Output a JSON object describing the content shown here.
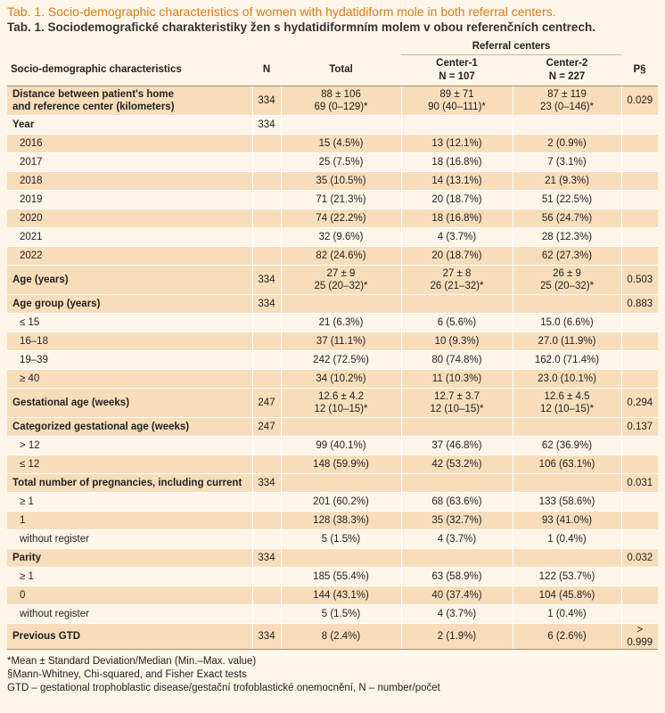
{
  "title_en": "Tab. 1. Socio-demographic characteristics of women with hydatidiform mole in both referral centers.",
  "title_cz": "Tab. 1. Sociodemografické charakteristiky žen s hydatidiformním molem v obou referenčních centrech.",
  "header": {
    "group": "Referral centers",
    "characteristics": "Socio-demographic characteristics",
    "n": "N",
    "total": "Total",
    "center1_name": "Center-1",
    "center1_n": "N = 107",
    "center2_name": "Center-2",
    "center2_n": "N = 227",
    "p": "P§"
  },
  "rows": [
    {
      "label": "Distance between patient's home",
      "label2": "and reference center (kilometers)",
      "type": "sec",
      "n": "334",
      "total": "88 ± 106",
      "total2": "69 (0–129)*",
      "c1": "89 ± 71",
      "c1b": "90 (40–111)*",
      "c2": "87 ± 119",
      "c2b": "23 (0–146)*",
      "p": "0.029"
    },
    {
      "label": "Year",
      "type": "sec",
      "n": "334",
      "total": "",
      "c1": "",
      "c2": "",
      "p": ""
    },
    {
      "label": "2016",
      "type": "sub",
      "n": "",
      "total": "15 (4.5%)",
      "c1": "13 (12.1%)",
      "c2": "2 (0.9%)",
      "p": ""
    },
    {
      "label": "2017",
      "type": "sub",
      "n": "",
      "total": "25 (7.5%)",
      "c1": "18 (16.8%)",
      "c2": "7 (3.1%)",
      "p": ""
    },
    {
      "label": "2018",
      "type": "sub",
      "n": "",
      "total": "35 (10.5%)",
      "c1": "14 (13.1%)",
      "c2": "21 (9.3%)",
      "p": ""
    },
    {
      "label": "2019",
      "type": "sub",
      "n": "",
      "total": "71 (21.3%)",
      "c1": "20 (18.7%)",
      "c2": "51 (22.5%)",
      "p": ""
    },
    {
      "label": "2020",
      "type": "sub",
      "n": "",
      "total": "74 (22.2%)",
      "c1": "18 (16.8%)",
      "c2": "56 (24.7%)",
      "p": ""
    },
    {
      "label": "2021",
      "type": "sub",
      "n": "",
      "total": "32 (9.6%)",
      "c1": "4 (3.7%)",
      "c2": "28 (12.3%)",
      "p": ""
    },
    {
      "label": "2022",
      "type": "sub",
      "n": "",
      "total": "82 (24.6%)",
      "c1": "20 (18.7%)",
      "c2": "62 (27.3%)",
      "p": ""
    },
    {
      "label": "Age (years)",
      "type": "sec",
      "n": "334",
      "total": "27 ± 9",
      "total2": "25 (20–32)*",
      "c1": "27 ± 8",
      "c1b": "26 (21–32)*",
      "c2": "26 ± 9",
      "c2b": "25 (20–32)*",
      "p": "0.503"
    },
    {
      "label": "Age group (years)",
      "type": "sec",
      "n": "334",
      "total": "",
      "c1": "",
      "c2": "",
      "p": "0.883"
    },
    {
      "label": "≤ 15",
      "type": "sub",
      "n": "",
      "total": "21 (6.3%)",
      "c1": "6 (5.6%)",
      "c2": "15.0 (6.6%)",
      "p": ""
    },
    {
      "label": "16–18",
      "type": "sub",
      "n": "",
      "total": "37 (11.1%)",
      "c1": "10 (9.3%)",
      "c2": "27.0 (11.9%)",
      "p": ""
    },
    {
      "label": "19–39",
      "type": "sub",
      "n": "",
      "total": "242 (72.5%)",
      "c1": "80 (74.8%)",
      "c2": "162.0 (71.4%)",
      "p": ""
    },
    {
      "label": "≥ 40",
      "type": "sub",
      "n": "",
      "total": "34 (10.2%)",
      "c1": "11 (10.3%)",
      "c2": "23.0 (10.1%)",
      "p": ""
    },
    {
      "label": "Gestational age (weeks)",
      "type": "sec",
      "n": "247",
      "total": "12.6 ± 4.2",
      "total2": "12 (10–15)*",
      "c1": "12.7 ± 3.7",
      "c1b": "12 (10–15)*",
      "c2": "12.6 ± 4.5",
      "c2b": "12 (10–15)*",
      "p": "0.294"
    },
    {
      "label": "Categorized gestational age (weeks)",
      "type": "sec",
      "n": "247",
      "total": "",
      "c1": "",
      "c2": "",
      "p": "0.137"
    },
    {
      "label": "> 12",
      "type": "sub",
      "n": "",
      "total": "99 (40.1%)",
      "c1": "37 (46.8%)",
      "c2": "62 (36.9%)",
      "p": ""
    },
    {
      "label": "≤ 12",
      "type": "sub",
      "n": "",
      "total": "148 (59.9%)",
      "c1": "42 (53.2%)",
      "c2": "106 (63.1%)",
      "p": ""
    },
    {
      "label": "Total number of pregnancies, including current",
      "type": "sec",
      "n": "334",
      "total": "",
      "c1": "",
      "c2": "",
      "p": "0.031"
    },
    {
      "label": "≥ 1",
      "type": "sub",
      "n": "",
      "total": "201 (60.2%)",
      "c1": "68 (63.6%)",
      "c2": "133 (58.6%)",
      "p": ""
    },
    {
      "label": "1",
      "type": "sub",
      "n": "",
      "total": "128 (38.3%)",
      "c1": "35 (32.7%)",
      "c2": "93 (41.0%)",
      "p": ""
    },
    {
      "label": "without register",
      "type": "sub",
      "n": "",
      "total": "5 (1.5%)",
      "c1": "4 (3.7%)",
      "c2": "1 (0.4%)",
      "p": ""
    },
    {
      "label": "Parity",
      "type": "sec",
      "n": "334",
      "total": "",
      "c1": "",
      "c2": "",
      "p": "0.032"
    },
    {
      "label": "≥ 1",
      "type": "sub",
      "n": "",
      "total": "185 (55.4%)",
      "c1": "63 (58.9%)",
      "c2": "122 (53.7%)",
      "p": ""
    },
    {
      "label": "0",
      "type": "sub",
      "n": "",
      "total": "144 (43.1%)",
      "c1": "40 (37.4%)",
      "c2": "104 (45.8%)",
      "p": ""
    },
    {
      "label": "without register",
      "type": "sub",
      "n": "",
      "total": "5 (1.5%)",
      "c1": "4 (3.7%)",
      "c2": "1 (0.4%)",
      "p": ""
    },
    {
      "label": "Previous GTD",
      "type": "sec",
      "n": "334",
      "total": "8 (2.4%)",
      "c1": "2 (1.9%)",
      "c2": "6 (2.6%)",
      "p": "> 0.999"
    }
  ],
  "notes": [
    "*Mean ± Standard Deviation/Median (Min.–Max. value)",
    "§Mann-Whitney, Chi-squared, and Fisher Exact tests",
    "GTD – gestational trophoblastic disease/gestační trofoblastické onemocnění, N – number/počet"
  ],
  "colors": {
    "title": "#d77b19",
    "shade": "#f8ddbb",
    "background": "#fdf5e8"
  }
}
